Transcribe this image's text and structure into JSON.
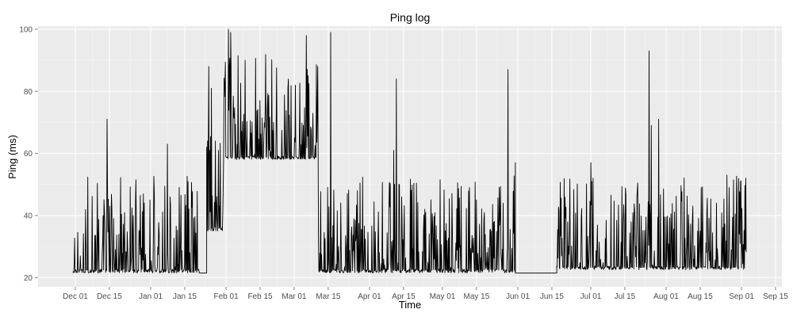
{
  "chart_data": {
    "type": "line",
    "title": "Ping log",
    "xlabel": "Time",
    "ylabel": "Ping (ms)",
    "x_ticks": [
      "Dec 01",
      "Dec 15",
      "Jan 01",
      "Jan 15",
      "Feb 01",
      "Feb 15",
      "Mar 01",
      "Mar 15",
      "Apr 01",
      "Apr 15",
      "May 01",
      "May 15",
      "Jun 01",
      "Jun 15",
      "Jul 01",
      "Jul 15",
      "Aug 01",
      "Aug 15",
      "Sep 01",
      "Sep 15"
    ],
    "y_ticks": [
      20,
      40,
      60,
      80,
      100
    ],
    "ylim": [
      17,
      101
    ],
    "grid": true,
    "background": "#ebebeb",
    "gridline_color": "#ffffff",
    "line_color": "#000000",
    "series": [
      {
        "segments": [
          {
            "x_start": "Nov 30",
            "x_end": "Jan 21",
            "baseline": 21.5,
            "typical_max": 53,
            "spikes": [
              [
                "Dec 14",
                71
              ],
              [
                "Jan 08",
                63
              ],
              [
                "Dec 29",
                47
              ]
            ]
          },
          {
            "x_start": "Jan 21",
            "x_end": "Jan 24",
            "baseline": 21.5,
            "typical_max": 21.5,
            "spikes": []
          },
          {
            "x_start": "Jan 24",
            "x_end": "Jan 31",
            "baseline": 35,
            "typical_max": 68,
            "spikes": [
              [
                "Jan 25",
                88
              ],
              [
                "Jan 26",
                81
              ]
            ]
          },
          {
            "x_start": "Jan 31",
            "x_end": "Mar 11",
            "baseline": 58,
            "typical_max": 92,
            "spikes": [
              [
                "Feb 02",
                100
              ],
              [
                "Feb 03",
                99
              ],
              [
                "Mar 06",
                98
              ]
            ]
          },
          {
            "x_start": "Mar 11",
            "x_end": "May 31",
            "baseline": 21.5,
            "typical_max": 53,
            "spikes": [
              [
                "Mar 16",
                99
              ],
              [
                "Apr 12",
                84
              ],
              [
                "Apr 11",
                61
              ],
              [
                "May 28",
                87
              ],
              [
                "May 31",
                57
              ]
            ]
          },
          {
            "x_start": "May 31",
            "x_end": "Jun 17",
            "baseline": 21.5,
            "typical_max": 21.5,
            "spikes": []
          },
          {
            "x_start": "Jun 17",
            "x_end": "Sep 03",
            "baseline": 22.5,
            "typical_max": 53,
            "spikes": [
              [
                "Jul 25",
                93
              ],
              [
                "Jul 26",
                69
              ],
              [
                "Jul 29",
                71
              ],
              [
                "Jul 01",
                57
              ],
              [
                "Aug 26",
                53
              ]
            ]
          }
        ]
      }
    ]
  }
}
